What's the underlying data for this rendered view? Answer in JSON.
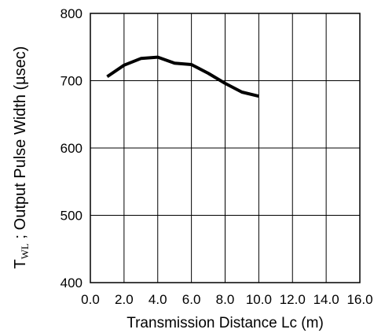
{
  "chart_data": {
    "type": "line",
    "title": "",
    "xlabel": "Transmission Distance Lc (m)",
    "ylabel": {
      "main": "T",
      "subscript": "WL",
      "rest": " ; Output Pulse Width (µsec)"
    },
    "xlim": [
      0,
      16
    ],
    "ylim": [
      400,
      800
    ],
    "x_ticks": [
      0,
      2,
      4,
      6,
      8,
      10,
      12,
      14,
      16
    ],
    "x_tick_labels": [
      "0.0",
      "2.0",
      "4.0",
      "6.0",
      "8.0",
      "10.0",
      "12.0",
      "14.0",
      "16.0"
    ],
    "y_ticks": [
      400,
      500,
      600,
      700,
      800
    ],
    "y_tick_labels": [
      "400",
      "500",
      "600",
      "700",
      "800"
    ],
    "grid": true,
    "series": [
      {
        "color": "#000000",
        "x": [
          1.0,
          2.0,
          3.0,
          4.0,
          5.0,
          6.0,
          7.0,
          8.0,
          9.0,
          10.0
        ],
        "y": [
          706,
          723,
          733,
          735,
          726,
          724,
          711,
          696,
          683,
          677
        ]
      }
    ]
  }
}
